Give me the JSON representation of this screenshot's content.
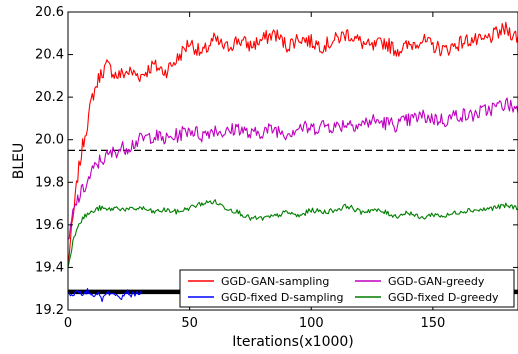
{
  "chart_data": {
    "type": "line",
    "xlabel": "Iterations(x1000)",
    "ylabel": "BLEU",
    "xlim": [
      0,
      185
    ],
    "ylim": [
      19.2,
      20.6
    ],
    "xticks": [
      0,
      50,
      100,
      150
    ],
    "xtick_labels": [
      "0",
      "50",
      "100",
      "150"
    ],
    "yticks": [
      19.2,
      19.4,
      19.6,
      19.8,
      20.0,
      20.2,
      20.4,
      20.6
    ],
    "ytick_labels": [
      "19.2",
      "19.4",
      "19.6",
      "19.8",
      "20.0",
      "20.2",
      "20.4",
      "20.6"
    ],
    "grid": false,
    "legend_position": "lower-right",
    "reference_lines": [
      {
        "y": 19.95,
        "style": "dashed",
        "color": "#000000"
      },
      {
        "y": 19.285,
        "style": "solid-thick",
        "color": "#000000"
      }
    ],
    "series": [
      {
        "name": "GGD-GAN-sampling",
        "color": "#ff0000",
        "x": [
          0,
          2,
          4,
          6,
          8,
          10,
          13,
          16,
          20,
          25,
          30,
          35,
          40,
          45,
          50,
          55,
          60,
          65,
          70,
          75,
          80,
          85,
          90,
          95,
          100,
          105,
          110,
          115,
          120,
          125,
          130,
          135,
          140,
          145,
          150,
          155,
          160,
          165,
          170,
          175,
          180,
          185
        ],
        "y": [
          19.42,
          19.62,
          19.83,
          19.97,
          20.08,
          20.2,
          20.3,
          20.35,
          20.3,
          20.32,
          20.3,
          20.35,
          20.32,
          20.38,
          20.46,
          20.4,
          20.47,
          20.43,
          20.47,
          20.44,
          20.47,
          20.5,
          20.44,
          20.48,
          20.46,
          20.44,
          20.47,
          20.5,
          20.46,
          20.43,
          20.46,
          20.42,
          20.44,
          20.47,
          20.44,
          20.42,
          20.45,
          20.47,
          20.46,
          20.49,
          20.52,
          20.48
        ]
      },
      {
        "name": "GGD-fixed D-sampling",
        "color": "#0000ff",
        "x": [
          0,
          2,
          4,
          6,
          8,
          10,
          12,
          14,
          16,
          18,
          20,
          22,
          24,
          26,
          28,
          30
        ],
        "y": [
          19.28,
          19.27,
          19.3,
          19.26,
          19.29,
          19.27,
          19.28,
          19.25,
          19.29,
          19.27,
          19.28,
          19.26,
          19.29,
          19.27,
          19.28,
          19.28
        ]
      },
      {
        "name": "GGD-GAN-greedy",
        "color": "#bf00bf",
        "x": [
          0,
          2,
          4,
          6,
          8,
          10,
          13,
          16,
          20,
          25,
          30,
          35,
          40,
          45,
          50,
          55,
          60,
          65,
          70,
          75,
          80,
          85,
          90,
          95,
          100,
          105,
          110,
          115,
          120,
          125,
          130,
          135,
          140,
          145,
          150,
          155,
          160,
          165,
          170,
          175,
          180,
          185
        ],
        "y": [
          19.5,
          19.65,
          19.72,
          19.76,
          19.8,
          19.85,
          19.9,
          19.92,
          19.95,
          19.97,
          20.0,
          20.02,
          20.0,
          20.02,
          20.05,
          20.02,
          20.05,
          20.03,
          20.06,
          20.02,
          20.04,
          20.05,
          20.03,
          20.06,
          20.05,
          20.07,
          20.06,
          20.08,
          20.07,
          20.09,
          20.08,
          20.07,
          20.09,
          20.11,
          20.1,
          20.09,
          20.12,
          20.11,
          20.13,
          20.15,
          20.17,
          20.14
        ]
      },
      {
        "name": "GGD-fixed D-greedy",
        "color": "#007f00",
        "x": [
          0,
          2,
          4,
          6,
          8,
          10,
          13,
          16,
          20,
          25,
          30,
          35,
          40,
          45,
          50,
          55,
          60,
          65,
          70,
          75,
          80,
          85,
          90,
          95,
          100,
          105,
          110,
          115,
          120,
          125,
          130,
          135,
          140,
          145,
          150,
          155,
          160,
          165,
          170,
          175,
          180,
          185
        ],
        "y": [
          19.4,
          19.52,
          19.6,
          19.63,
          19.65,
          19.66,
          19.68,
          19.67,
          19.68,
          19.67,
          19.68,
          19.66,
          19.67,
          19.66,
          19.68,
          19.7,
          19.71,
          19.68,
          19.66,
          19.63,
          19.63,
          19.64,
          19.66,
          19.64,
          19.67,
          19.66,
          19.67,
          19.69,
          19.66,
          19.67,
          19.66,
          19.64,
          19.66,
          19.63,
          19.65,
          19.64,
          19.66,
          19.67,
          19.67,
          19.68,
          19.69,
          19.68
        ]
      }
    ]
  }
}
